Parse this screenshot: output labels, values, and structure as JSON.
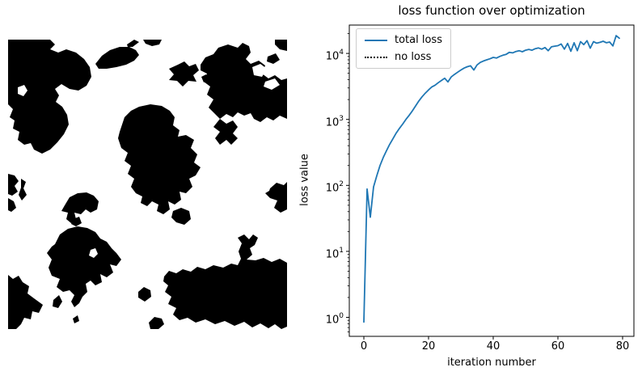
{
  "figure": {
    "background": "#ffffff"
  },
  "left_panel": {
    "description": "black and white binary blob mask image",
    "foreground": "#000000",
    "background": "#ffffff",
    "blobs": [
      "M0 0 L52 0 L58 6 L52 12 L62 16 L72 12 L84 16 L94 24 L101 34 L103 46 L97 57 L87 63 L76 61 L66 55 L58 61 L63 69 L59 77 L67 83 L73 93 L75 105 L69 117 L61 127 L52 136 L42 141 L32 136 L28 128 L20 130 L12 124 L14 114 L6 110 L8 100 L2 96 L6 86 L0 80 Z",
      "M108 30 L116 20 L126 13 L138 9 L150 9 L158 13 L162 19 L156 26 L146 31 L134 34 L122 36 L112 36 Z",
      "M147 6 L156 0 L162 3 L154 9 L148 9 Z",
      "M167 0 L190 0 L187 6 L178 8 L170 5 Z",
      "M210 31 L218 27 L224 33 L232 30 L236 38 L229 44 L233 52 L223 51 L216 58 L209 51 L199 50 L205 43 L199 36 Z",
      "M239 46 L245 43 L248 49 L242 53 Z",
      "M238 31 L244 22 L254 18 L260 10 L272 6 L284 10 L290 4 L298 8 L300 16 L294 24 L300 30 L310 26 L318 32 L314 42 L322 48 L330 44 L338 50 L345 48 L345 98 L336 94 L328 100 L320 96 L312 102 L304 98 L300 91 L292 94 L284 90 L278 96 L270 92 L262 98 L256 92 L248 84 L254 74 L246 68 L250 58 L242 52 L246 42 L238 38 Z",
      "M262 98 L270 104 L278 100 L284 108 L278 116 L284 122 L276 130 L270 124 L262 130 L256 122 L262 114 L254 108 Z",
      "M330 0 L345 0 L345 14 L336 12 L330 6 Z",
      "M321 21 L331 17 L336 25 L328 30 L320 27 Z",
      "M140 108 L144 96 L152 88 L162 83 L176 80 L190 82 L200 88 L206 96 L204 106 L212 112 L210 120 L220 118 L230 124 L226 134 L234 142 L230 152 L238 158 L232 168 L224 172 L228 182 L220 190 L212 188 L214 198 L206 204 L198 200 L200 210 L192 216 L184 212 L186 204 L178 200 L172 206 L164 202 L166 194 L158 190 L152 182 L156 172 L148 166 L152 156 L144 150 L148 140 L140 134 L136 122 L138 114 Z",
      "M204 212 L214 208 L224 212 L226 222 L218 229 L208 226 L202 220 Z",
      "M0 166 L8 168 L13 175 L8 181 L12 188 L5 193 L0 191 Z",
      "M16 172 L22 176 L19 184 L23 192 L17 199 L13 192 L16 183 Z",
      "M0 196 L7 200 L10 208 L4 213 L0 211 Z",
      "M324 184 L332 177 L341 180 L345 176 L345 210 L337 214 L329 208 L333 199 L324 196 L318 190 L323 187 Z",
      "M70 205 L76 195 L86 190 L97 189 L106 193 L112 200 L110 210 L102 214 L96 210 L90 216 L82 214 L84 222 L78 227 L72 222 L74 214 L66 212 Z",
      "M80 222 L88 219 L91 227 L84 231 L78 228 Z",
      "M58 253 L64 241 L74 234 L86 231 L98 233 L108 238 L114 246 L122 250 L128 258 L134 264 L140 272 L134 280 L126 278 L130 288 L122 294 L114 290 L116 300 L108 304 L102 298 L96 302 L98 312 L92 318 L88 326 L82 331 L78 324 L82 316 L76 310 L68 312 L60 306 L64 296 L54 292 L50 282 L54 272 L48 264 L54 256 Z",
      "M56 322 L63 316 L67 324 L62 332 L55 330 Z",
      "M80 345 L86 341 L88 348 L82 351 Z",
      "M193 293 L199 286 L208 289 L216 284 L226 287 L234 281 L244 284 L254 279 L266 282 L276 277 L284 279 L288 271 L285 262 L289 252 L284 245 L292 241 L298 247 L303 241 L309 245 L305 254 L299 258 L302 266 L295 272 L306 273 L316 270 L326 275 L336 271 L345 276 L345 355 L338 358 L330 352 L322 357 L312 351 L302 356 L292 349 L280 354 L268 348 L256 352 L244 346 L232 350 L222 344 L212 347 L204 340 L208 332 L198 327 L202 318 L194 312 L198 304 L192 299 Z",
      "M161 312 L168 306 L176 310 L177 318 L169 324 L161 319 Z",
      "M0 291 L6 296 L13 292 L18 300 L26 305 L24 314 L32 320 L43 328 L38 338 L30 336 L28 346 L20 344 L16 352 L10 358 L0 358 Z",
      "M174 350 L181 343 L190 345 L193 352 L186 358 L176 358 Z"
    ],
    "holes": [
      "M12 59 L20 56 L24 63 L19 70 L12 67 Z",
      "M302 34 L312 30 L320 36 L314 46 L304 44 Z",
      "M318 52 L330 48 L336 56 L326 62 L316 58 Z",
      "M102 260 L108 258 L111 265 L106 270 L100 267 Z"
    ]
  },
  "chart_data": {
    "type": "line",
    "title": "loss function over optimization",
    "xlabel": "iteration number",
    "ylabel": "loss value",
    "yscale": "log",
    "grid": false,
    "legend_position": "upper left",
    "xlim": [
      -4.5,
      83.5
    ],
    "ylog_lim": [
      -0.288,
      4.43
    ],
    "xticks": [
      0,
      20,
      40,
      60,
      80
    ],
    "ytick_exponents": [
      0,
      1,
      2,
      3,
      4
    ],
    "axis_color": "#000000",
    "legend": [
      {
        "label": "total loss",
        "color": "#1f77b4",
        "style": "solid"
      },
      {
        "label": "no loss",
        "color": "#000000",
        "style": "dotted"
      }
    ],
    "series": [
      {
        "name": "total loss",
        "color": "#1f77b4",
        "style": "solid",
        "linewidth": 1.8,
        "x_start": 0,
        "x_step": 1,
        "values": [
          0.85,
          88,
          33,
          95,
          140,
          200,
          265,
          335,
          420,
          510,
          620,
          730,
          850,
          1000,
          1150,
          1350,
          1600,
          1900,
          2200,
          2500,
          2800,
          3100,
          3300,
          3600,
          3900,
          4200,
          3700,
          4400,
          4800,
          5200,
          5600,
          6000,
          6300,
          6500,
          5600,
          6700,
          7300,
          7700,
          8000,
          8300,
          8700,
          8500,
          9000,
          9400,
          9700,
          10400,
          10200,
          10700,
          11000,
          10600,
          11200,
          11500,
          11200,
          11800,
          12100,
          11600,
          12300,
          11000,
          12600,
          12900,
          13100,
          13900,
          11600,
          14200,
          10800,
          14500,
          11000,
          15100,
          13600,
          15600,
          12000,
          15100,
          14300,
          14700,
          15300,
          14500,
          14900,
          13000,
          18600,
          17000
        ]
      },
      {
        "name": "no loss",
        "color": "#000000",
        "style": "dotted",
        "linewidth": 1.8,
        "values": []
      }
    ]
  }
}
